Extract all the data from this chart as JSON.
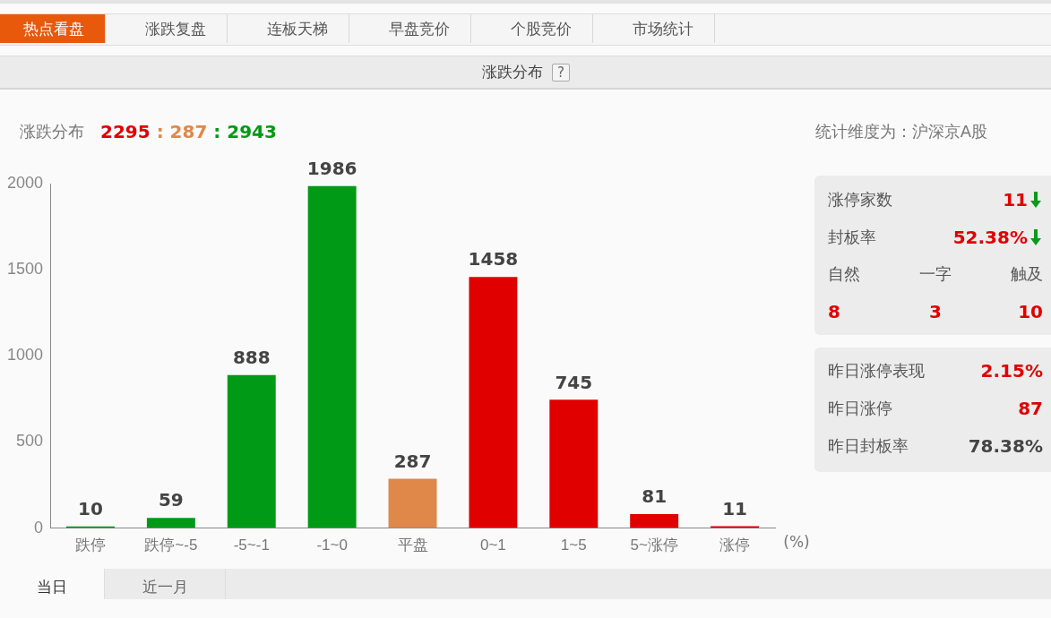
{
  "chart_data": [
    {
      "type": "bar",
      "title": "涨跌分布",
      "subtitle": "2295 : 287 : 2943",
      "xlabel": "(%)",
      "categories": [
        "跌停",
        "跌停~-5",
        "-5~-1",
        "-1~0",
        "平盘",
        "0~1",
        "1~5",
        "5~涨停",
        "涨停"
      ],
      "values": [
        10,
        59,
        888,
        1986,
        287,
        1458,
        745,
        81,
        11
      ],
      "colors": [
        "#009a16",
        "#009a16",
        "#009a16",
        "#009a16",
        "#e0874a",
        "#e00000",
        "#e00000",
        "#e00000",
        "#e00000"
      ],
      "ylim": [
        0,
        2000
      ],
      "yticks": [
        0,
        500,
        1000,
        1500,
        2000
      ],
      "grid": false,
      "legend": false,
      "data_labels": true,
      "annotations": [
        "涨跌分布",
        "统计维度为：沪深京A股"
      ]
    },
    {
      "type": "other",
      "annotations": [
        "热点看盘",
        "涨跌复盘",
        "连板天梯",
        "早盘竞价",
        "个股竞价",
        "市场统计",
        "?",
        "涨停家数",
        "11",
        "封板率",
        "52.38%",
        "自然",
        "一字",
        "触及",
        "8",
        "3",
        "10",
        "昨日涨停表现",
        "2.15%",
        "昨日涨停",
        "87",
        "昨日封板率",
        "78.38%",
        "当日",
        "近一月"
      ]
    }
  ]
}
